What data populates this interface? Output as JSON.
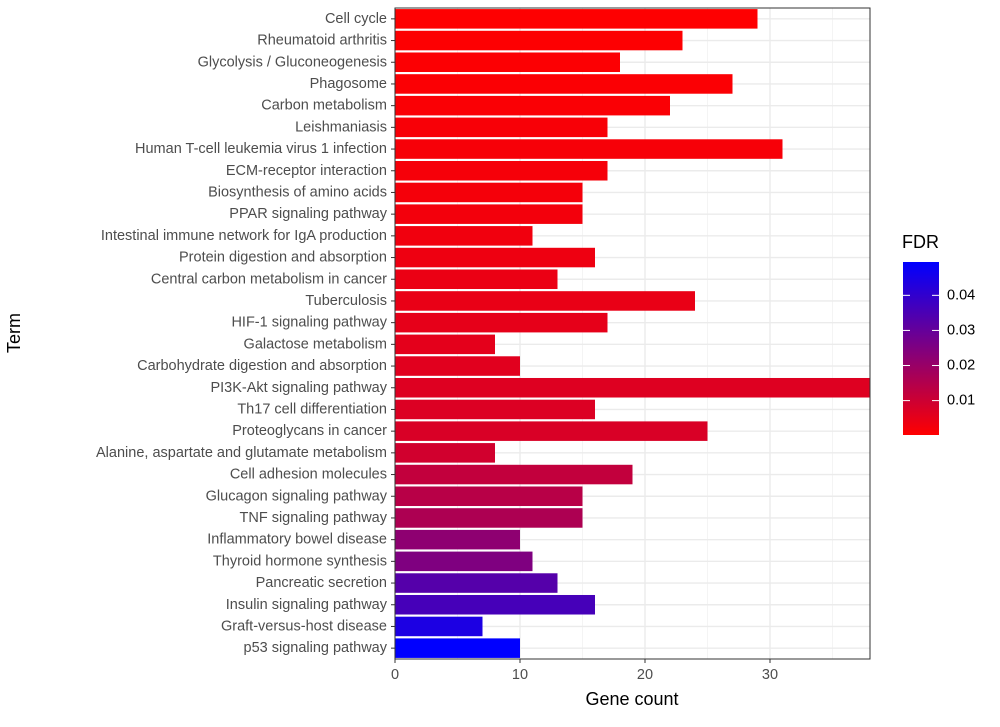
{
  "chart_data": {
    "type": "bar",
    "orientation": "horizontal",
    "title": "",
    "xlabel": "Gene count",
    "ylabel": "Term",
    "xlim": [
      0,
      38
    ],
    "x_ticks": [
      0,
      10,
      20,
      30
    ],
    "x_tick_labels": [
      "0",
      "10",
      "20",
      "30"
    ],
    "grid": true,
    "legend": {
      "title": "FDR",
      "position": "right",
      "range": [
        0.0002,
        0.0495
      ],
      "ticks": [
        0.01,
        0.02,
        0.03,
        0.04
      ],
      "tick_labels": [
        "0.01",
        "0.02",
        "0.03",
        "0.04"
      ],
      "low_color": "#ff0000",
      "high_color": "#0000ff"
    },
    "categories": [
      "Cell cycle",
      "Rheumatoid arthritis",
      "Glycolysis / Gluconeogenesis",
      "Phagosome",
      "Carbon metabolism",
      "Leishmaniasis",
      "Human T-cell leukemia virus 1 infection",
      "ECM-receptor interaction",
      "Biosynthesis of amino acids",
      "PPAR signaling pathway",
      "Intestinal immune network for IgA production",
      "Protein digestion and absorption",
      "Central carbon metabolism in cancer",
      "Tuberculosis",
      "HIF-1 signaling pathway",
      "Galactose metabolism",
      "Carbohydrate digestion and absorption",
      "PI3K-Akt signaling pathway",
      "Th17 cell differentiation",
      "Proteoglycans in cancer",
      "Alanine, aspartate and glutamate metabolism",
      "Cell adhesion molecules",
      "Glucagon signaling pathway",
      "TNF signaling pathway",
      "Inflammatory bowel disease",
      "Thyroid hormone synthesis",
      "Pancreatic secretion",
      "Insulin signaling pathway",
      "Graft-versus-host disease",
      "p53 signaling pathway"
    ],
    "values": [
      29,
      23,
      18,
      27,
      22,
      17,
      31,
      17,
      15,
      15,
      11,
      16,
      13,
      24,
      17,
      8,
      10,
      38,
      16,
      25,
      8,
      19,
      15,
      15,
      10,
      11,
      13,
      16,
      7,
      10
    ],
    "fdr": [
      0.0003,
      0.0005,
      0.0008,
      0.001,
      0.0012,
      0.0015,
      0.0018,
      0.002,
      0.0022,
      0.0025,
      0.003,
      0.0035,
      0.004,
      0.0045,
      0.005,
      0.0055,
      0.006,
      0.0065,
      0.007,
      0.0075,
      0.009,
      0.012,
      0.014,
      0.016,
      0.022,
      0.025,
      0.033,
      0.036,
      0.044,
      0.0495
    ]
  }
}
